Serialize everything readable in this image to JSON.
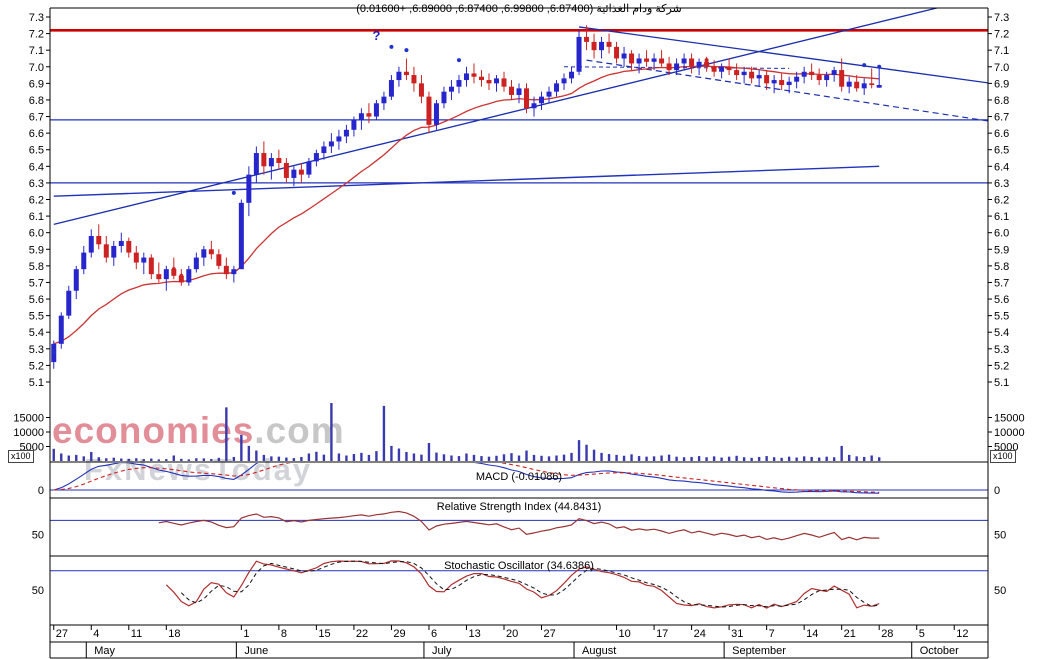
{
  "title": "شركة ودام الغذائية (6.87400, 6.99800, 6.87400, 6.89000, +0.01600)",
  "watermark": {
    "brand_red": "economies",
    "brand_gray": ".com",
    "secondary": "FxNewsToday"
  },
  "panels": {
    "macd_label": "MACD (-0.01086)",
    "rsi_label": "Relative Strength Index (44.8431)",
    "stoch_label": "Stochastic Oscillator (34.6386)"
  },
  "axis": {
    "price_ticks": [
      "7.3",
      "7.2",
      "7.1",
      "7.0",
      "6.9",
      "6.8",
      "6.7",
      "6.6",
      "6.5",
      "6.4",
      "6.3",
      "6.2",
      "6.1",
      "6.0",
      "5.9",
      "5.8",
      "5.7",
      "5.6",
      "5.5",
      "5.4",
      "5.3",
      "5.2",
      "5.1"
    ],
    "volume_ticks": [
      "15000",
      "10000",
      "5000"
    ],
    "volume_multiplier": "x100",
    "macd_zero": "0",
    "rsi_mid": "50",
    "stoch_mid": "50"
  },
  "x_axis": {
    "day_ticks": [
      {
        "label": "27",
        "slot": 0
      },
      {
        "label": "4",
        "slot": 5
      },
      {
        "label": "11",
        "slot": 10
      },
      {
        "label": "18",
        "slot": 15
      },
      {
        "label": "1",
        "slot": 25
      },
      {
        "label": "8",
        "slot": 30
      },
      {
        "label": "15",
        "slot": 35
      },
      {
        "label": "22",
        "slot": 40
      },
      {
        "label": "29",
        "slot": 45
      },
      {
        "label": "6",
        "slot": 50
      },
      {
        "label": "13",
        "slot": 55
      },
      {
        "label": "20",
        "slot": 60
      },
      {
        "label": "27",
        "slot": 65
      },
      {
        "label": "10",
        "slot": 75
      },
      {
        "label": "17",
        "slot": 80
      },
      {
        "label": "24",
        "slot": 85
      },
      {
        "label": "31",
        "slot": 90
      },
      {
        "label": "7",
        "slot": 95
      },
      {
        "label": "14",
        "slot": 100
      },
      {
        "label": "21",
        "slot": 105
      },
      {
        "label": "28",
        "slot": 110
      },
      {
        "label": "5",
        "slot": 115
      },
      {
        "label": "12",
        "slot": 120
      }
    ],
    "months": [
      {
        "label": "May",
        "slot": 5
      },
      {
        "label": "June",
        "slot": 25
      },
      {
        "label": "July",
        "slot": 50
      },
      {
        "label": "August",
        "slot": 70
      },
      {
        "label": "September",
        "slot": 90
      },
      {
        "label": "October",
        "slot": 115
      }
    ]
  },
  "chart_data": {
    "type": "candlestick",
    "ylim": [
      5.1,
      7.3
    ],
    "last": {
      "open": 6.874,
      "high": 6.998,
      "low": 6.874,
      "close": 6.89,
      "change": 0.016
    },
    "indicator_values": {
      "macd": -0.01086,
      "rsi": 44.8431,
      "stoch": 34.6386
    },
    "levels": {
      "resistance": 7.22,
      "support_mid": 6.68,
      "support_low": 6.3
    },
    "ma_long": {
      "start": 6.22,
      "end": 6.4
    },
    "trendlines": [
      {
        "s1": 0,
        "p1": 6.05,
        "s2": 120,
        "p2": 7.38,
        "dash": "",
        "w": 1.3
      },
      {
        "s1": 70,
        "p1": 7.24,
        "s2": 125,
        "p2": 6.9,
        "dash": "",
        "w": 1.3
      },
      {
        "s1": 71,
        "p1": 7.04,
        "s2": 125,
        "p2": 6.67,
        "dash": "6,4",
        "w": 1.2
      },
      {
        "s1": 68,
        "p1": 7.0,
        "s2": 98,
        "p2": 6.99,
        "dash": "4,3",
        "w": 1
      }
    ],
    "markers": [
      {
        "slot": 0,
        "price": 5.28,
        "color": "#2233cc"
      },
      {
        "slot": 16,
        "price": 5.78,
        "color": "#cc2222"
      },
      {
        "slot": 17,
        "price": 5.74,
        "color": "#cc2222"
      },
      {
        "slot": 24,
        "price": 6.24,
        "color": "#2233cc"
      },
      {
        "slot": 45,
        "price": 7.12,
        "color": "#2233cc"
      },
      {
        "slot": 47,
        "price": 7.1,
        "color": "#2233cc"
      },
      {
        "slot": 54,
        "price": 7.04,
        "color": "#2233cc"
      },
      {
        "slot": 87,
        "price": 7.04,
        "color": "#cc2222"
      },
      {
        "slot": 108,
        "price": 7.01,
        "color": "#2233cc"
      },
      {
        "slot": 110,
        "price": 7.0,
        "color": "#2233cc"
      }
    ],
    "annotation": {
      "text": "?",
      "slot": 43,
      "price": 7.16
    },
    "ohlc": [
      [
        5.22,
        5.35,
        5.18,
        5.33
      ],
      [
        5.33,
        5.52,
        5.3,
        5.5
      ],
      [
        5.5,
        5.68,
        5.48,
        5.65
      ],
      [
        5.65,
        5.8,
        5.6,
        5.78
      ],
      [
        5.78,
        5.92,
        5.75,
        5.88
      ],
      [
        5.88,
        6.02,
        5.85,
        5.98
      ],
      [
        5.98,
        6.05,
        5.9,
        5.93
      ],
      [
        5.93,
        5.98,
        5.82,
        5.85
      ],
      [
        5.85,
        5.95,
        5.8,
        5.92
      ],
      [
        5.92,
        6.0,
        5.88,
        5.95
      ],
      [
        5.95,
        5.97,
        5.85,
        5.88
      ],
      [
        5.88,
        5.92,
        5.78,
        5.82
      ],
      [
        5.82,
        5.88,
        5.75,
        5.85
      ],
      [
        5.85,
        5.87,
        5.72,
        5.75
      ],
      [
        5.75,
        5.82,
        5.7,
        5.72
      ],
      [
        5.72,
        5.8,
        5.65,
        5.78
      ],
      [
        5.78,
        5.85,
        5.72,
        5.74
      ],
      [
        5.74,
        5.78,
        5.68,
        5.7
      ],
      [
        5.7,
        5.8,
        5.68,
        5.78
      ],
      [
        5.78,
        5.88,
        5.76,
        5.85
      ],
      [
        5.85,
        5.92,
        5.8,
        5.9
      ],
      [
        5.9,
        5.95,
        5.84,
        5.87
      ],
      [
        5.87,
        5.9,
        5.78,
        5.8
      ],
      [
        5.8,
        5.85,
        5.72,
        5.75
      ],
      [
        5.75,
        5.8,
        5.7,
        5.78
      ],
      [
        5.78,
        6.2,
        5.78,
        6.18
      ],
      [
        6.18,
        6.4,
        6.1,
        6.35
      ],
      [
        6.35,
        6.52,
        6.3,
        6.48
      ],
      [
        6.48,
        6.55,
        6.35,
        6.4
      ],
      [
        6.4,
        6.48,
        6.32,
        6.45
      ],
      [
        6.45,
        6.5,
        6.38,
        6.42
      ],
      [
        6.42,
        6.45,
        6.3,
        6.33
      ],
      [
        6.33,
        6.4,
        6.28,
        6.38
      ],
      [
        6.38,
        6.42,
        6.3,
        6.35
      ],
      [
        6.35,
        6.45,
        6.33,
        6.43
      ],
      [
        6.43,
        6.5,
        6.4,
        6.48
      ],
      [
        6.48,
        6.55,
        6.44,
        6.52
      ],
      [
        6.52,
        6.6,
        6.48,
        6.55
      ],
      [
        6.55,
        6.62,
        6.5,
        6.58
      ],
      [
        6.58,
        6.65,
        6.54,
        6.62
      ],
      [
        6.62,
        6.7,
        6.58,
        6.68
      ],
      [
        6.68,
        6.75,
        6.62,
        6.72
      ],
      [
        6.72,
        6.78,
        6.66,
        6.7
      ],
      [
        6.7,
        6.8,
        6.68,
        6.78
      ],
      [
        6.78,
        6.85,
        6.74,
        6.82
      ],
      [
        6.82,
        6.95,
        6.8,
        6.92
      ],
      [
        6.92,
        7.0,
        6.88,
        6.97
      ],
      [
        6.97,
        7.05,
        6.92,
        6.95
      ],
      [
        6.95,
        7.0,
        6.85,
        6.9
      ],
      [
        6.9,
        6.95,
        6.78,
        6.82
      ],
      [
        6.82,
        6.85,
        6.6,
        6.65
      ],
      [
        6.65,
        6.8,
        6.62,
        6.78
      ],
      [
        6.78,
        6.88,
        6.75,
        6.85
      ],
      [
        6.85,
        6.92,
        6.8,
        6.88
      ],
      [
        6.88,
        6.95,
        6.84,
        6.92
      ],
      [
        6.92,
        7.0,
        6.88,
        6.96
      ],
      [
        6.96,
        7.02,
        6.9,
        6.94
      ],
      [
        6.94,
        6.98,
        6.88,
        6.92
      ],
      [
        6.92,
        6.96,
        6.86,
        6.9
      ],
      [
        6.9,
        6.95,
        6.85,
        6.93
      ],
      [
        6.93,
        6.97,
        6.85,
        6.88
      ],
      [
        6.88,
        6.92,
        6.8,
        6.83
      ],
      [
        6.83,
        6.9,
        6.78,
        6.87
      ],
      [
        6.87,
        6.9,
        6.72,
        6.75
      ],
      [
        6.75,
        6.82,
        6.7,
        6.78
      ],
      [
        6.78,
        6.85,
        6.74,
        6.82
      ],
      [
        6.82,
        6.88,
        6.78,
        6.85
      ],
      [
        6.85,
        6.92,
        6.82,
        6.9
      ],
      [
        6.9,
        6.96,
        6.86,
        6.93
      ],
      [
        6.93,
        7.0,
        6.9,
        6.97
      ],
      [
        6.97,
        7.22,
        6.95,
        7.18
      ],
      [
        7.18,
        7.25,
        7.1,
        7.15
      ],
      [
        7.15,
        7.2,
        7.05,
        7.1
      ],
      [
        7.1,
        7.18,
        7.05,
        7.15
      ],
      [
        7.15,
        7.2,
        7.08,
        7.12
      ],
      [
        7.12,
        7.15,
        7.02,
        7.05
      ],
      [
        7.05,
        7.12,
        7.0,
        7.08
      ],
      [
        7.08,
        7.1,
        6.98,
        7.02
      ],
      [
        7.02,
        7.08,
        6.96,
        7.05
      ],
      [
        7.05,
        7.1,
        7.0,
        7.03
      ],
      [
        7.03,
        7.08,
        6.98,
        7.05
      ],
      [
        7.05,
        7.1,
        7.0,
        7.02
      ],
      [
        7.02,
        7.06,
        6.95,
        6.98
      ],
      [
        6.98,
        7.05,
        6.95,
        7.02
      ],
      [
        7.02,
        7.08,
        6.98,
        7.05
      ],
      [
        7.05,
        7.08,
        6.96,
        7.0
      ],
      [
        7.0,
        7.05,
        6.95,
        7.03
      ],
      [
        7.03,
        7.06,
        6.97,
        7.0
      ],
      [
        7.0,
        7.04,
        6.94,
        6.97
      ],
      [
        6.97,
        7.02,
        6.93,
        7.0
      ],
      [
        7.0,
        7.05,
        6.95,
        6.98
      ],
      [
        6.98,
        7.02,
        6.92,
        6.95
      ],
      [
        6.95,
        7.0,
        6.9,
        6.97
      ],
      [
        6.97,
        7.0,
        6.9,
        6.93
      ],
      [
        6.93,
        6.98,
        6.88,
        6.95
      ],
      [
        6.95,
        6.98,
        6.86,
        6.9
      ],
      [
        6.9,
        6.95,
        6.84,
        6.92
      ],
      [
        6.92,
        6.96,
        6.86,
        6.89
      ],
      [
        6.89,
        6.94,
        6.84,
        6.91
      ],
      [
        6.91,
        6.97,
        6.87,
        6.94
      ],
      [
        6.94,
        7.0,
        6.9,
        6.97
      ],
      [
        6.97,
        7.02,
        6.92,
        6.95
      ],
      [
        6.95,
        6.99,
        6.89,
        6.92
      ],
      [
        6.92,
        6.97,
        6.88,
        6.95
      ],
      [
        6.95,
        7.0,
        6.91,
        6.98
      ],
      [
        6.98,
        7.05,
        6.85,
        6.88
      ],
      [
        6.88,
        6.94,
        6.84,
        6.91
      ],
      [
        6.91,
        6.95,
        6.85,
        6.87
      ],
      [
        6.87,
        6.93,
        6.83,
        6.9
      ],
      [
        6.9,
        6.99,
        6.87,
        6.89
      ],
      [
        6.874,
        6.998,
        6.874,
        6.89
      ]
    ],
    "volume": [
      4200,
      2600,
      1900,
      2100,
      1600,
      3100,
      1300,
      950,
      1150,
      850,
      750,
      950,
      650,
      850,
      550,
      650,
      1900,
      750,
      550,
      950,
      900,
      700,
      1100,
      18500,
      1400,
      9000,
      5200,
      3600,
      2100,
      1600,
      1500,
      1200,
      1000,
      1400,
      2600,
      3200,
      2200,
      20000,
      2600,
      1900,
      2400,
      2800,
      2100,
      3400,
      19000,
      5200,
      4300,
      3100,
      2600,
      2200,
      6200,
      2900,
      2300,
      1900,
      1700,
      2600,
      2100,
      1700,
      1500,
      1800,
      2300,
      2700,
      1900,
      3600,
      2100,
      1800,
      1600,
      1900,
      2200,
      2800,
      7200,
      5600,
      3900,
      2800,
      2400,
      2100,
      1800,
      2300,
      1700,
      1500,
      1600,
      1900,
      2200,
      1500,
      1300,
      1400,
      1700,
      1300,
      1600,
      1200,
      1500,
      1800,
      1300,
      1100,
      1400,
      1700,
      1300,
      1100,
      1500,
      1200,
      1600,
      1400,
      1200,
      1500,
      1300,
      5200,
      2100,
      1600,
      1400,
      1900,
      1300
    ]
  },
  "colors": {
    "up": "#2626cc",
    "down": "#cc2222",
    "ma_fast": "#cc3333",
    "ma_long": "#2233bb",
    "level_blue": "#2233bb",
    "resistance": "#cc0000",
    "trend": "#1b2fae",
    "volume": "#3a3aae",
    "macd_line": "#2233bb",
    "macd_signal": "#cc2222",
    "rsi": "#993333",
    "stoch_k": "#b03030",
    "stoch_d": "#111111",
    "text": "#000000"
  }
}
